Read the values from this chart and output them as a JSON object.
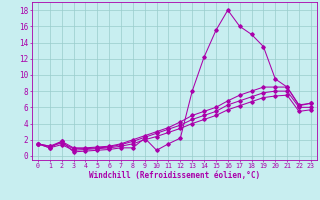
{
  "xlabel": "Windchill (Refroidissement éolien,°C)",
  "background_color": "#c8eef0",
  "line_color": "#aa00aa",
  "grid_color": "#99cccc",
  "x_ticks": [
    0,
    1,
    2,
    3,
    4,
    5,
    6,
    7,
    8,
    9,
    10,
    11,
    12,
    13,
    14,
    15,
    16,
    17,
    18,
    19,
    20,
    21,
    22,
    23
  ],
  "xlim": [
    -0.5,
    23.5
  ],
  "ylim": [
    -0.5,
    19.0
  ],
  "y_ticks": [
    0,
    2,
    4,
    6,
    8,
    10,
    12,
    14,
    16,
    18
  ],
  "series_main": [
    1.5,
    1.0,
    1.8,
    0.5,
    0.6,
    0.7,
    0.8,
    1.0,
    1.0,
    2.2,
    0.7,
    1.5,
    2.2,
    8.0,
    12.2,
    15.5,
    18.0,
    16.0,
    15.0,
    13.5,
    9.5,
    8.5,
    6.2,
    6.5
  ],
  "series_a": [
    1.5,
    1.2,
    1.8,
    1.0,
    1.0,
    1.1,
    1.2,
    1.5,
    2.0,
    2.5,
    3.0,
    3.5,
    4.2,
    5.0,
    5.5,
    6.0,
    6.8,
    7.5,
    8.0,
    8.5,
    8.5,
    8.5,
    6.3,
    6.5
  ],
  "series_b": [
    1.5,
    1.2,
    1.6,
    0.9,
    0.9,
    1.0,
    1.1,
    1.4,
    1.8,
    2.3,
    2.8,
    3.3,
    3.8,
    4.5,
    5.0,
    5.5,
    6.3,
    6.8,
    7.3,
    7.8,
    8.0,
    8.0,
    6.0,
    6.0
  ],
  "series_c": [
    1.5,
    1.0,
    1.4,
    0.7,
    0.8,
    0.9,
    1.0,
    1.2,
    1.5,
    2.0,
    2.4,
    2.9,
    3.4,
    4.0,
    4.5,
    5.0,
    5.7,
    6.2,
    6.7,
    7.2,
    7.4,
    7.5,
    5.5,
    5.7
  ]
}
